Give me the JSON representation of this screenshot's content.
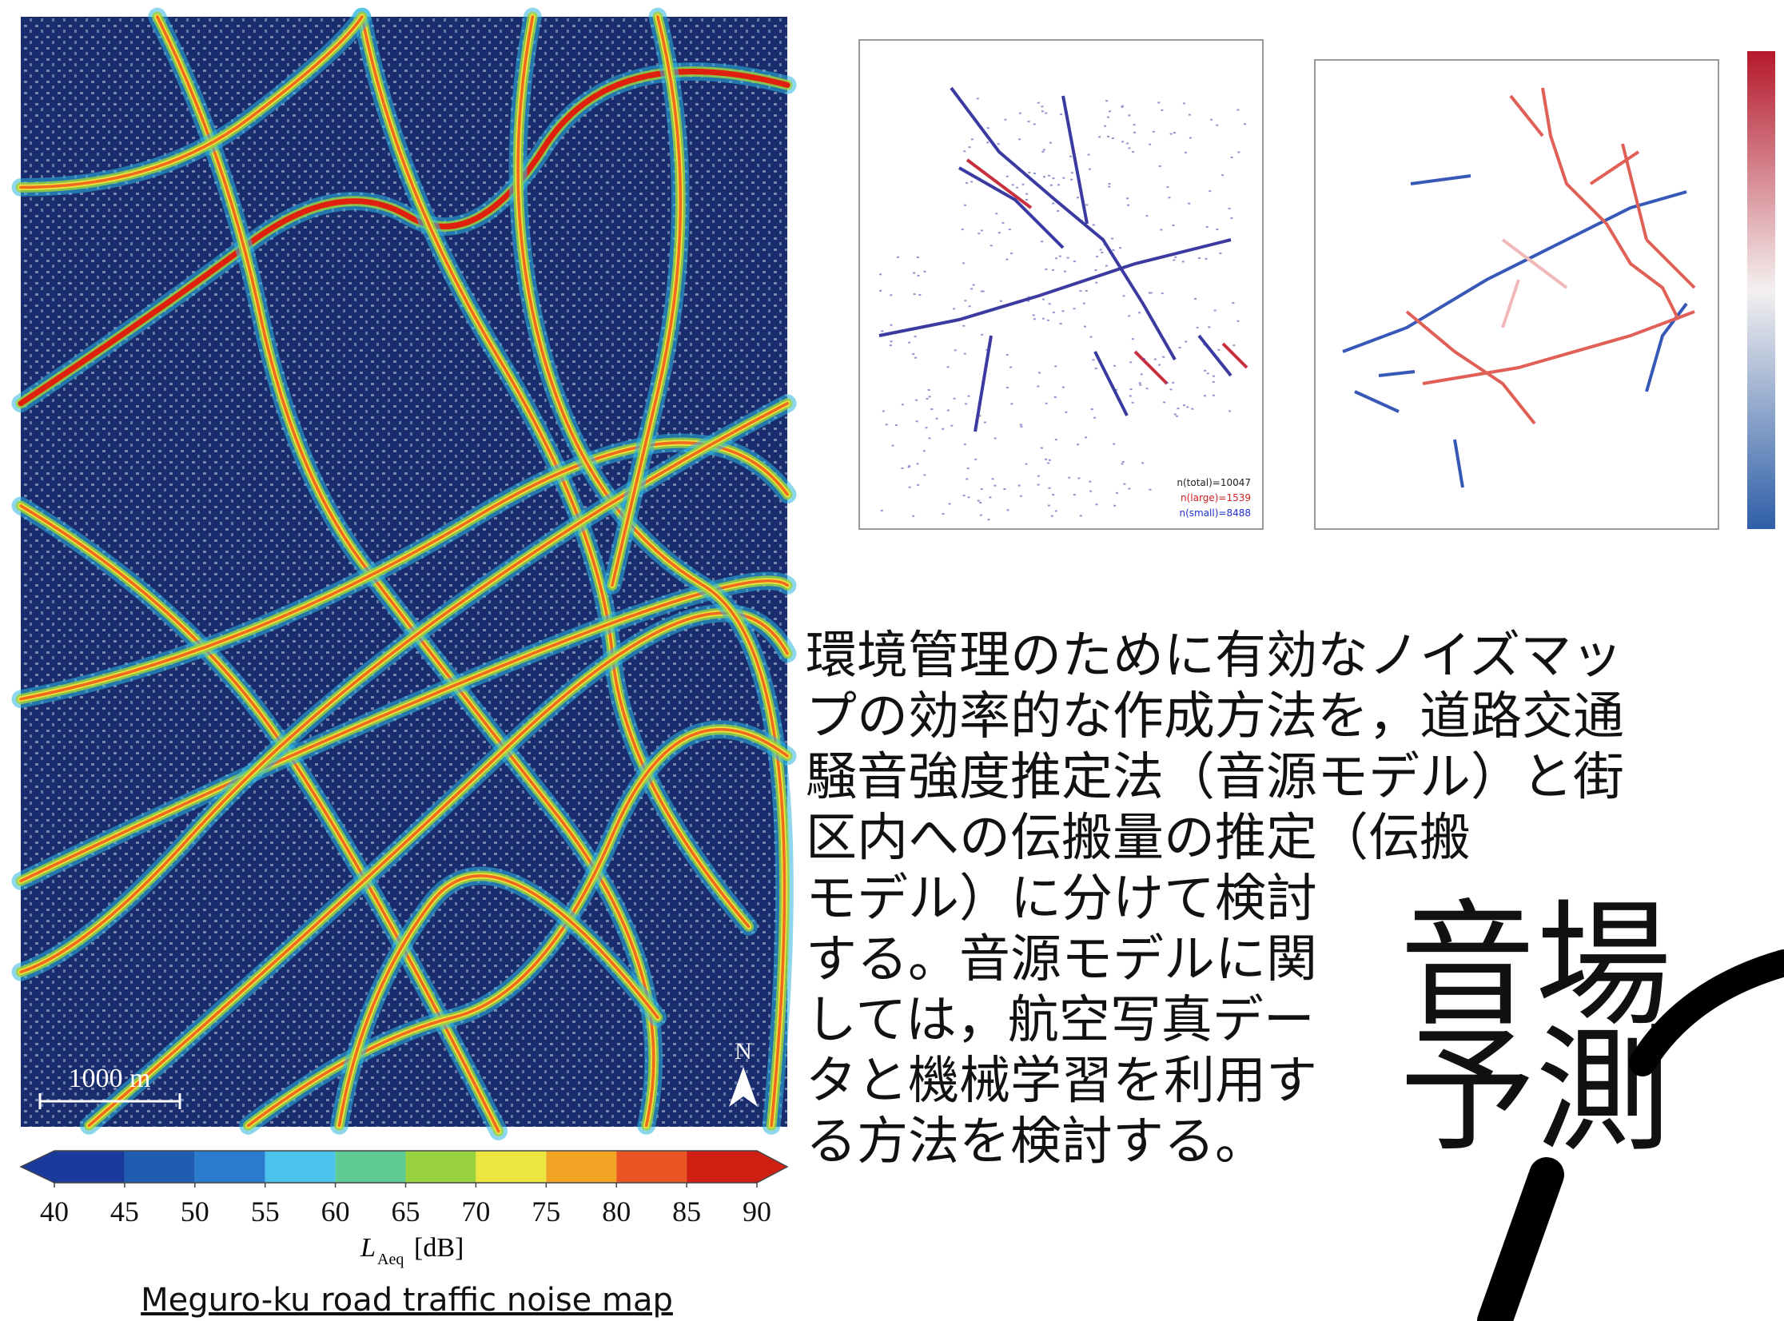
{
  "noise_map": {
    "scale_bar": "1000 m",
    "north": "N",
    "colorbar": {
      "ticks": [
        40,
        45,
        50,
        55,
        60,
        65,
        70,
        75,
        80,
        85,
        90
      ],
      "colors": [
        "#1b3b9c",
        "#1f5db2",
        "#2a7bcb",
        "#4cc3ee",
        "#5fca92",
        "#9ad23f",
        "#ebe640",
        "#f2a424",
        "#e95522",
        "#cf1f12"
      ]
    },
    "axis_label": {
      "symbol": "L",
      "subscript": "Aeq",
      "unit": "[dB]"
    },
    "caption": "Meguro-ku road traffic noise map"
  },
  "plot_legend": [
    "n(total)=10047",
    "n(large)=1539",
    "n(small)=8488"
  ],
  "description": [
    "環境管理のために有効なノイズマッ",
    "プの効率的な作成方法を，道路交通",
    "騒音強度推定法（音源モデル）と街",
    "区内への伝搬量の推定（伝搬",
    "モデル）に分けて検討",
    "する。音源モデルに関",
    "しては，航空写真デー",
    "タと機械学習を利用す",
    "る方法を検討する。"
  ],
  "title_lines": [
    "音場",
    "予測"
  ]
}
